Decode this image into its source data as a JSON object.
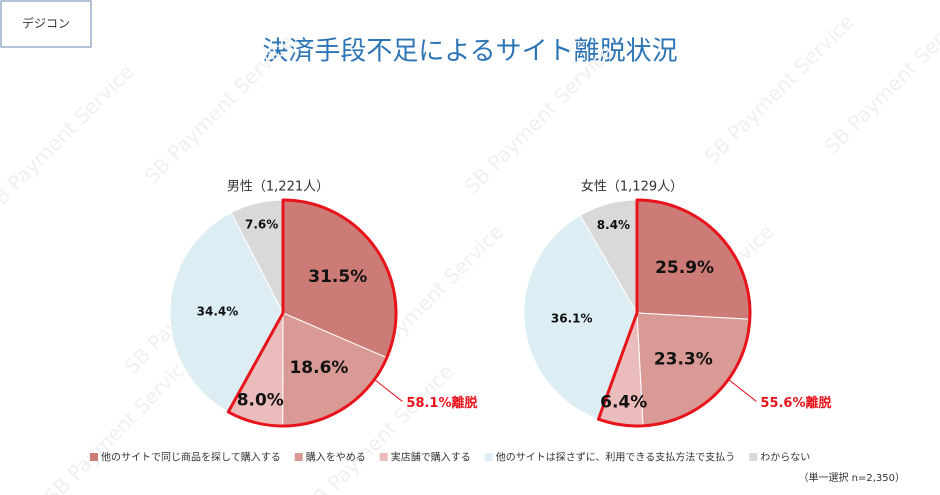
{
  "tag": "デジコン",
  "watermark": "SB Payment Service",
  "title": "決済手段不足によるサイト離脱状況",
  "legend": {
    "labels": [
      "他のサイトで同じ商品を探して購入する",
      "購入をやめる",
      "実店舗で購入する",
      "他のサイトは探さずに、利用できる支払方法で支払う",
      "わからない"
    ],
    "colors": [
      "#cd7b77",
      "#d99a96",
      "#ebbcbc",
      "#dcedf3",
      "#d9d9d9"
    ]
  },
  "note": "（単一選択 n=2,350）",
  "highlight_color": "#e8141c",
  "highlight_slices": [
    0,
    1,
    2
  ],
  "chart_data": [
    {
      "type": "pie",
      "title": "男性（1,221人）",
      "values": [
        31.5,
        18.6,
        8.0,
        34.4,
        7.6
      ],
      "value_labels": [
        "31.5%",
        "18.6%",
        "8.0%",
        "34.4%",
        "7.6%"
      ],
      "annotation": "58.1%離脱"
    },
    {
      "type": "pie",
      "title": "女性（1,129人）",
      "values": [
        25.9,
        23.3,
        6.4,
        36.1,
        8.4
      ],
      "value_labels": [
        "25.9%",
        "23.3%",
        "6.4%",
        "36.1%",
        "8.4%"
      ],
      "annotation": "55.6%離脱"
    }
  ]
}
